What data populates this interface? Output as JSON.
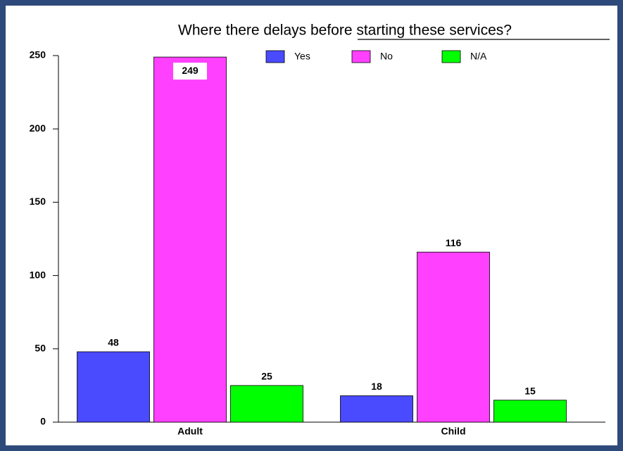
{
  "chart_data": {
    "type": "bar",
    "title": "Where there delays before starting these services?",
    "categories": [
      "Adult",
      "Child"
    ],
    "series": [
      {
        "name": "Yes",
        "color": "#4a4aff",
        "values": [
          48,
          18
        ]
      },
      {
        "name": "No",
        "color": "#ff40ff",
        "values": [
          249,
          116
        ]
      },
      {
        "name": "N/A",
        "color": "#00ff00",
        "values": [
          25,
          15
        ]
      }
    ],
    "ylim": [
      0,
      250
    ],
    "yticks": [
      0,
      50,
      100,
      150,
      200,
      250
    ],
    "grid": false,
    "legend": "top"
  }
}
